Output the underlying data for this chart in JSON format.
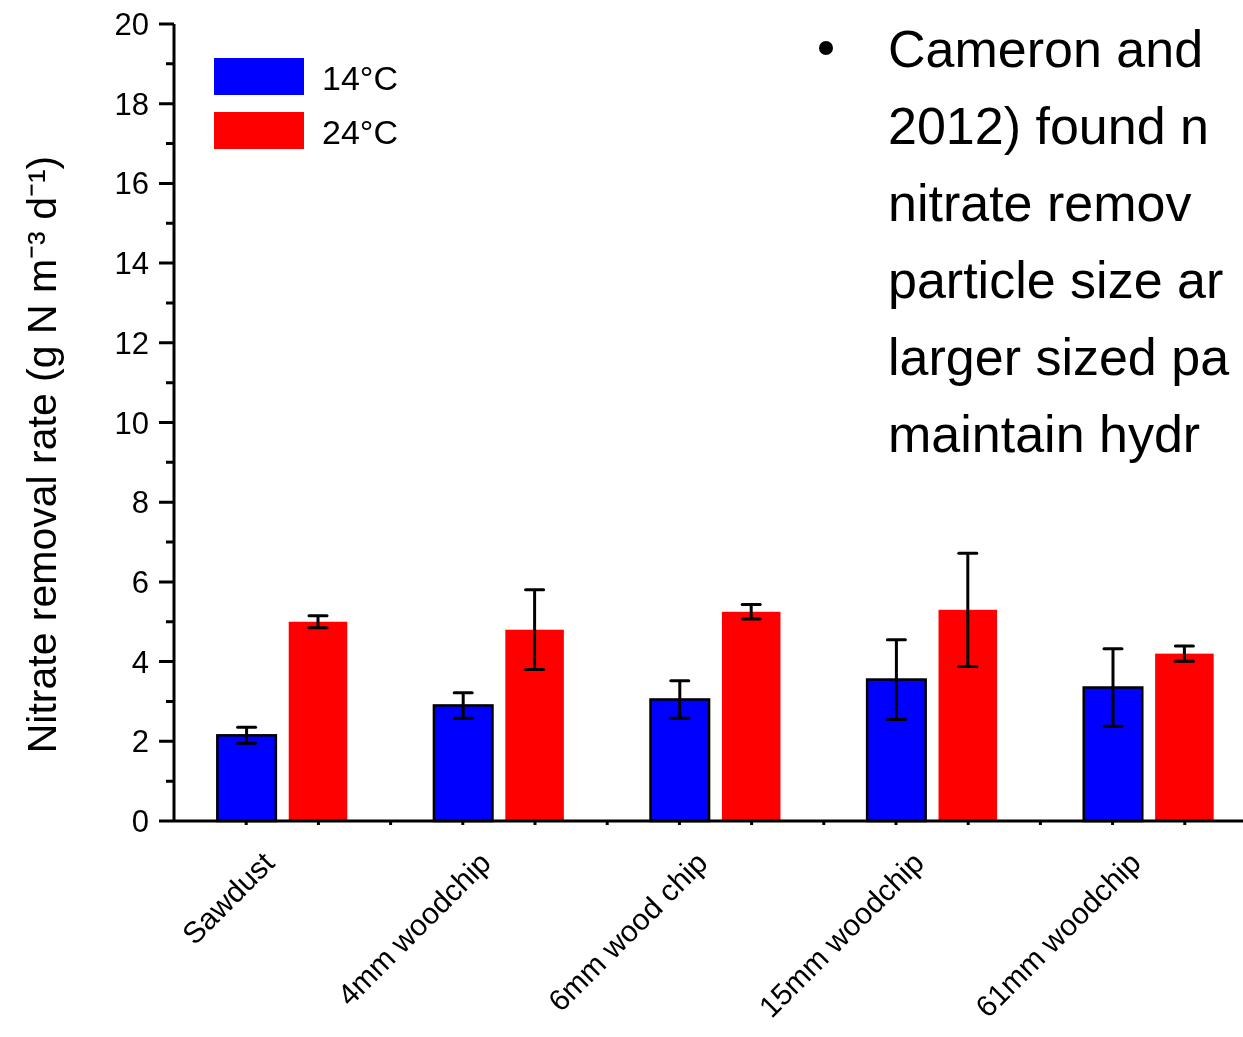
{
  "chart_data": {
    "type": "bar",
    "ylabel": "Nitrate removal rate (g N m⁻³ d⁻¹)",
    "categories": [
      "Sawdust",
      "4mm woodchip",
      "6mm wood chip",
      "15mm woodchip",
      "61mm woodchip"
    ],
    "series": [
      {
        "name": "14°C",
        "color": "#0000ff",
        "values": [
          2.15,
          2.9,
          3.05,
          3.55,
          3.35
        ],
        "errors": [
          0.2,
          0.32,
          0.47,
          1.0,
          0.97
        ]
      },
      {
        "name": "24°C",
        "color": "#ff0000",
        "values": [
          5.0,
          4.8,
          5.25,
          5.3,
          4.2
        ],
        "errors": [
          0.15,
          1.0,
          0.18,
          1.42,
          0.19
        ]
      }
    ],
    "ylim": [
      0,
      20
    ],
    "yticks": [
      0,
      {
        "value": 1,
        "label": null
      },
      2,
      {
        "value": 3,
        "label": null
      },
      4,
      {
        "value": 5,
        "label": null
      },
      6,
      {
        "value": 7,
        "label": null
      },
      8,
      {
        "value": 9,
        "label": null
      },
      10,
      {
        "value": 11,
        "label": null
      },
      12,
      {
        "value": 13,
        "label": null
      },
      14,
      {
        "value": 15,
        "label": null
      },
      16,
      {
        "value": 17,
        "label": null
      },
      18,
      {
        "value": 19,
        "label": null
      },
      20
    ],
    "legend": "top left",
    "annotations": [
      "Cameron and",
      "2012) found n",
      "nitrate remov",
      "particle size ar",
      "larger sized pa",
      "maintain hydr"
    ]
  }
}
